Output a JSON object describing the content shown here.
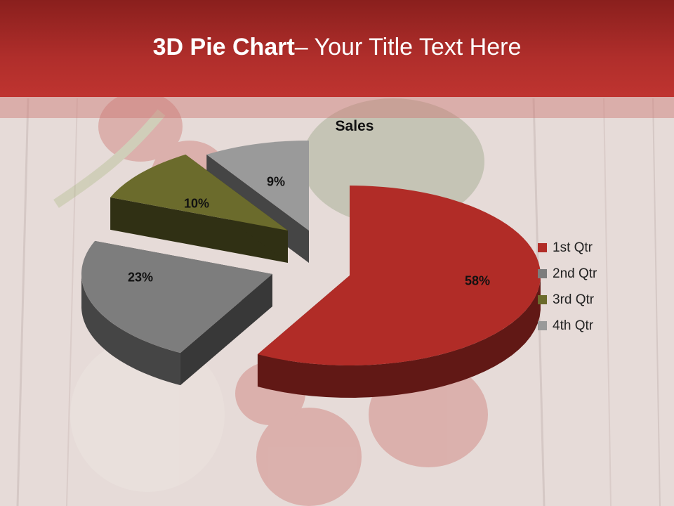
{
  "slide": {
    "title_bold": "3D Pie Chart",
    "title_rest": "– Your Title Text Here"
  },
  "chart_data": {
    "type": "pie",
    "title": "Sales",
    "categories": [
      "1st Qtr",
      "2nd Qtr",
      "3rd Qtr",
      "4th Qtr"
    ],
    "values": [
      58,
      23,
      10,
      9
    ],
    "value_labels": [
      "58%",
      "23%",
      "10%",
      "9%"
    ],
    "colors": [
      "#b12c27",
      "#7d7d7d",
      "#6b6b2c",
      "#9a9a9a"
    ],
    "exploded": true,
    "three_d": true,
    "legend_position": "right"
  }
}
